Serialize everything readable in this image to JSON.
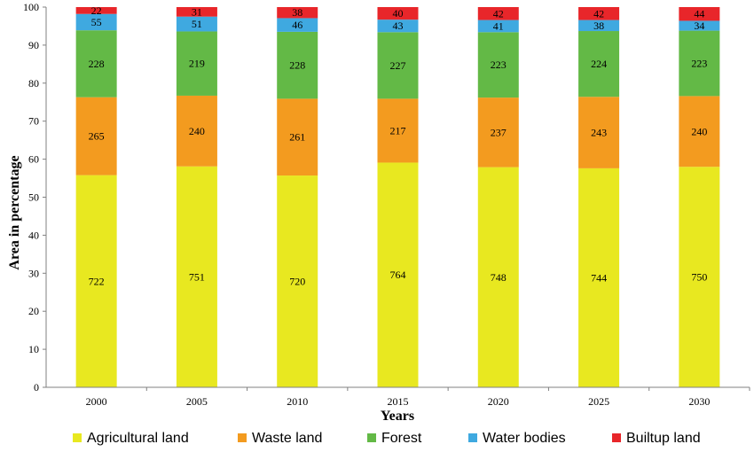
{
  "chart_data": {
    "type": "bar",
    "stacked": true,
    "xlabel": "Years",
    "ylabel": "Area in percentage",
    "ylim": [
      0,
      100
    ],
    "yticks": [
      0,
      10,
      20,
      30,
      40,
      50,
      60,
      70,
      80,
      90,
      100
    ],
    "categories": [
      "2000",
      "2005",
      "2010",
      "2015",
      "2020",
      "2025",
      "2030"
    ],
    "grid": false,
    "legend_position": "bottom",
    "series": [
      {
        "name": "Agricultural land",
        "color": "#e8e820",
        "labels": [
          "722",
          "751",
          "720",
          "764",
          "748",
          "744",
          "750"
        ],
        "values": [
          55.8,
          58.1,
          55.7,
          59.1,
          57.9,
          57.6,
          58.0
        ]
      },
      {
        "name": "Waste land",
        "color": "#f39b1f",
        "labels": [
          "265",
          "240",
          "261",
          "217",
          "237",
          "243",
          "240"
        ],
        "values": [
          20.5,
          18.6,
          20.2,
          16.8,
          18.3,
          18.8,
          18.6
        ]
      },
      {
        "name": "Forest",
        "color": "#63b946",
        "labels": [
          "228",
          "219",
          "228",
          "227",
          "223",
          "224",
          "223"
        ],
        "values": [
          17.6,
          16.9,
          17.6,
          17.5,
          17.2,
          17.3,
          17.2
        ]
      },
      {
        "name": "Water bodies",
        "color": "#3fa9e0",
        "labels": [
          "55",
          "51",
          "46",
          "43",
          "41",
          "38",
          "34"
        ],
        "values": [
          4.3,
          3.9,
          3.6,
          3.3,
          3.2,
          2.9,
          2.6
        ]
      },
      {
        "name": "Builtup land",
        "color": "#e8262a",
        "labels": [
          "22",
          "31",
          "38",
          "40",
          "42",
          "42",
          "44"
        ],
        "values": [
          1.8,
          2.5,
          2.9,
          3.3,
          3.4,
          3.4,
          3.6
        ]
      }
    ]
  }
}
